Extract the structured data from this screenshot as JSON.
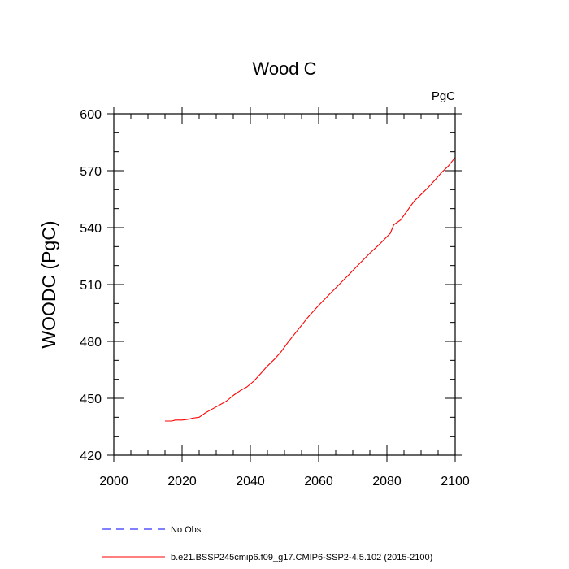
{
  "chart_data": {
    "type": "line",
    "title": "Wood C",
    "units_label": "PgC",
    "ylabel": "WOODC  (PgC)",
    "xlabel": "",
    "xlim": [
      2000,
      2100
    ],
    "ylim": [
      420,
      600
    ],
    "xticks": [
      2000,
      2020,
      2040,
      2060,
      2080,
      2100
    ],
    "yticks": [
      420,
      450,
      480,
      510,
      540,
      570,
      600
    ],
    "grid": false,
    "legend_position": "bottom-left",
    "legend": [
      {
        "name": "No Obs",
        "color": "#0000ff",
        "style": "dashed"
      },
      {
        "name": "b.e21.BSSP245cmip6.f09_g17.CMIP6-SSP2-4.5.102 (2015-2100)",
        "color": "#ff0000",
        "style": "solid"
      }
    ],
    "series": [
      {
        "name": "b.e21.BSSP245cmip6.f09_g17.CMIP6-SSP2-4.5.102 (2015-2100)",
        "color": "#ff0000",
        "x": [
          2015,
          2017,
          2018,
          2020,
          2022,
          2023,
          2025,
          2027,
          2029,
          2031,
          2033,
          2035,
          2037,
          2039,
          2041,
          2043,
          2045,
          2047,
          2049,
          2051,
          2053,
          2055,
          2057,
          2060,
          2063,
          2066,
          2069,
          2072,
          2075,
          2078,
          2081,
          2082,
          2084,
          2086,
          2088,
          2090,
          2092,
          2094,
          2096,
          2098,
          2100
        ],
        "y": [
          438,
          438,
          438.5,
          438.5,
          439,
          439.5,
          440,
          442.5,
          444.5,
          446.5,
          448.5,
          451.5,
          454,
          456,
          459,
          463,
          467,
          470.5,
          474.5,
          479.5,
          484,
          488.5,
          493,
          499,
          504.5,
          510,
          515.5,
          521,
          526.5,
          531.5,
          537,
          541.5,
          544,
          549,
          554,
          557.5,
          561,
          565,
          569,
          572.5,
          577
        ]
      }
    ]
  }
}
